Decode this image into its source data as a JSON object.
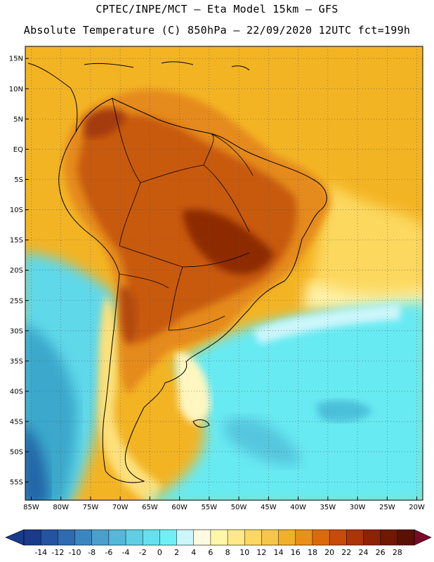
{
  "title_line1": "CPTEC/INPE/MCT –  Eta Model 15km – GFS",
  "title_line2": "Absolute Temperature (C) 850hPa – 22/09/2020 12UTC fct=199h",
  "map": {
    "lon_range": [
      -86,
      -19
    ],
    "lat_range": [
      -58,
      17
    ],
    "lat_labels": [
      "15N",
      "10N",
      "5N",
      "EQ",
      "5S",
      "10S",
      "15S",
      "20S",
      "25S",
      "30S",
      "35S",
      "40S",
      "45S",
      "50S",
      "55S"
    ],
    "lat_values": [
      15,
      10,
      5,
      0,
      -5,
      -10,
      -15,
      -20,
      -25,
      -30,
      -35,
      -40,
      -45,
      -50,
      -55
    ],
    "lon_labels": [
      "85W",
      "80W",
      "75W",
      "70W",
      "65W",
      "60W",
      "55W",
      "50W",
      "45W",
      "40W",
      "35W",
      "30W",
      "25W",
      "20W"
    ],
    "lon_values": [
      -85,
      -80,
      -75,
      -70,
      -65,
      -60,
      -55,
      -50,
      -45,
      -40,
      -35,
      -30,
      -25,
      -20
    ]
  },
  "colorbar": {
    "labels": [
      "-14",
      "-12",
      "-10",
      "-8",
      "-6",
      "-4",
      "-2",
      "0",
      "2",
      "4",
      "6",
      "8",
      "10",
      "12",
      "14",
      "16",
      "18",
      "20",
      "22",
      "24",
      "26",
      "28"
    ],
    "colors": [
      "#1a3a8a",
      "#2453a0",
      "#2e6bb0",
      "#3a86c0",
      "#4aa0cc",
      "#55b8d8",
      "#5fcfe4",
      "#66e0ee",
      "#6ff0f5",
      "#ccf6fa",
      "#fffbe0",
      "#fff6a8",
      "#ffe98a",
      "#fbd862",
      "#f6c64a",
      "#f0b02a",
      "#e8901a",
      "#dd6a0a",
      "#c84b08",
      "#ad3406",
      "#8e2204",
      "#711803",
      "#5a1002"
    ],
    "left_arrow_color": "#1a3a8a",
    "right_arrow_color": "#7a0a2a"
  },
  "palette": {
    "ocean_warm": "#f3b424",
    "ocean_mild": "#fcd85e",
    "ocean_cool": "#68eaf2",
    "ocean_cold": "#4cc0da",
    "land_hot": "#c85a10",
    "land_very_hot": "#8e2a06"
  }
}
